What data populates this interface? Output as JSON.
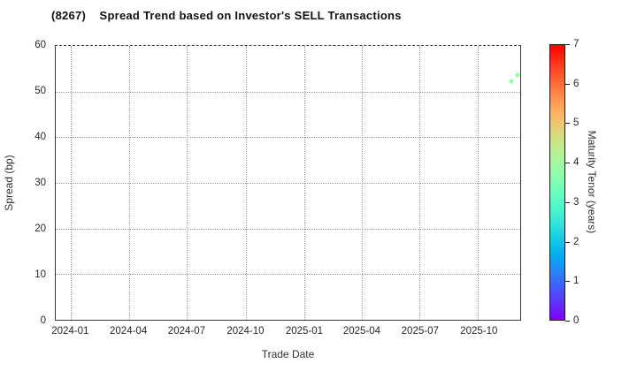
{
  "chart_data": {
    "type": "scatter",
    "title": "(8267)    Spread Trend based on Investor's SELL Transactions",
    "xlabel": "Trade Date",
    "ylabel": "Spread (bp)",
    "x_ticks": [
      "2024-01",
      "2024-04",
      "2024-07",
      "2024-10",
      "2025-01",
      "2025-04",
      "2025-07",
      "2025-10"
    ],
    "y_ticks": [
      0,
      10,
      20,
      30,
      40,
      50,
      60
    ],
    "ylim": [
      0,
      60
    ],
    "xlim": [
      "2023-12-08",
      "2025-12-06"
    ],
    "grid": true,
    "legend": "none",
    "colorbar": {
      "label": "Maturity Tenor (years)",
      "ticks": [
        0,
        1,
        2,
        3,
        4,
        5,
        6,
        7
      ],
      "range": [
        0,
        7
      ],
      "colormap": "rainbow",
      "position": "right"
    },
    "points": [
      {
        "date": "2025-11-22",
        "spread_bp": 52.2,
        "maturity_tenor_years": 3.8
      },
      {
        "date": "2025-12-02",
        "spread_bp": 53.7,
        "maturity_tenor_years": 3.8
      }
    ]
  }
}
